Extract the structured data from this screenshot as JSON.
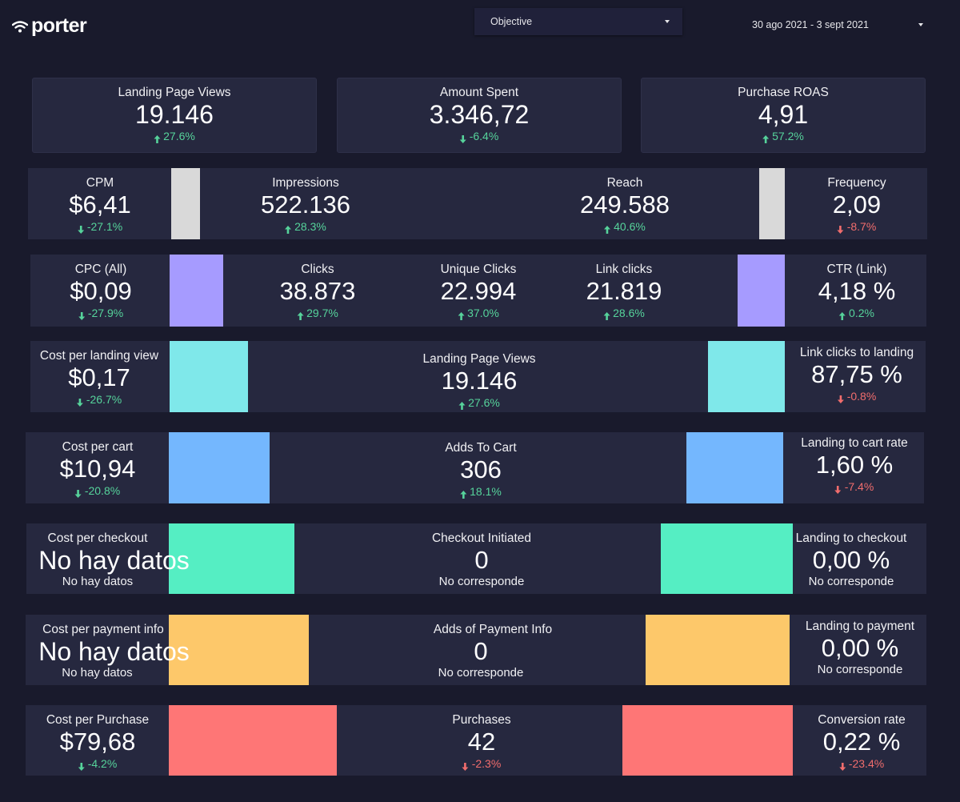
{
  "header": {
    "logo_text": "porter",
    "objective_label": "Objective",
    "date_range": "30 ago 2021 - 3 sept 2021"
  },
  "colors": {
    "background": "#191a2c",
    "card": "#26283f",
    "positive": "#56d39b",
    "negative": "#f16d6d",
    "bar_gray": "#d9d9d9",
    "bar_purple": "#a69bff",
    "bar_cyan": "#7fe8ea",
    "bar_blue": "#74b7fe",
    "bar_green": "#55eec3",
    "bar_yellow": "#fdc86a",
    "bar_red": "#fe7676"
  },
  "top": [
    {
      "label": "Landing Page Views",
      "value": "19.146",
      "delta": "27.6%",
      "dir": "up",
      "tone": "good"
    },
    {
      "label": "Amount Spent",
      "value": "3.346,72",
      "delta": "-6.4%",
      "dir": "down",
      "tone": "good"
    },
    {
      "label": "Purchase ROAS",
      "value": "4,91",
      "delta": "57.2%",
      "dir": "up",
      "tone": "good"
    }
  ],
  "rows": {
    "cpm": {
      "label": "CPM",
      "value": "$6,41",
      "delta": "-27.1%",
      "dir": "down",
      "tone": "good"
    },
    "impressions": {
      "label": "Impressions",
      "value": "522.136",
      "delta": "28.3%",
      "dir": "up",
      "tone": "good"
    },
    "reach": {
      "label": "Reach",
      "value": "249.588",
      "delta": "40.6%",
      "dir": "up",
      "tone": "good"
    },
    "frequency": {
      "label": "Frequency",
      "value": "2,09",
      "delta": "-8.7%",
      "dir": "down",
      "tone": "bad"
    },
    "cpc": {
      "label": "CPC (All)",
      "value": "$0,09",
      "delta": "-27.9%",
      "dir": "down",
      "tone": "good"
    },
    "clicks": {
      "label": "Clicks",
      "value": "38.873",
      "delta": "29.7%",
      "dir": "up",
      "tone": "good"
    },
    "unique_clicks": {
      "label": "Unique Clicks",
      "value": "22.994",
      "delta": "37.0%",
      "dir": "up",
      "tone": "good"
    },
    "link_clicks": {
      "label": "Link clicks",
      "value": "21.819",
      "delta": "28.6%",
      "dir": "up",
      "tone": "good"
    },
    "ctr": {
      "label": "CTR (Link)",
      "value": "4,18 %",
      "delta": "0.2%",
      "dir": "up",
      "tone": "good"
    },
    "cost_landing": {
      "label": "Cost per landing view",
      "value": "$0,17",
      "delta": "-26.7%",
      "dir": "down",
      "tone": "good"
    },
    "landing_views": {
      "label": "Landing Page Views",
      "value": "19.146",
      "delta": "27.6%",
      "dir": "up",
      "tone": "good"
    },
    "link_to_landing": {
      "label": "Link clicks to landing",
      "value": "87,75 %",
      "delta": "-0.8%",
      "dir": "down",
      "tone": "bad"
    },
    "cost_cart": {
      "label": "Cost per cart",
      "value": "$10,94",
      "delta": "-20.8%",
      "dir": "down",
      "tone": "good"
    },
    "adds_cart": {
      "label": "Adds To Cart",
      "value": "306",
      "delta": "18.1%",
      "dir": "up",
      "tone": "good"
    },
    "landing_cart": {
      "label": "Landing to cart rate",
      "value": "1,60 %",
      "delta": "-7.4%",
      "dir": "down",
      "tone": "bad"
    },
    "cost_checkout": {
      "label": "Cost per checkout",
      "value": "No hay datos",
      "delta": "No hay datos"
    },
    "checkout": {
      "label": "Checkout Initiated",
      "value": "0",
      "delta": "No corresponde"
    },
    "landing_checkout": {
      "label": "Landing to checkout",
      "value": "0,00 %",
      "delta": "No corresponde"
    },
    "cost_payment": {
      "label": "Cost per payment info",
      "value": "No hay datos",
      "delta": "No hay datos"
    },
    "payment": {
      "label": "Adds of Payment Info",
      "value": "0",
      "delta": "No corresponde"
    },
    "landing_payment": {
      "label": "Landing to payment",
      "value": "0,00 %",
      "delta": "No corresponde"
    },
    "cost_purchase": {
      "label": "Cost per Purchase",
      "value": "$79,68",
      "delta": "-4.2%",
      "dir": "down",
      "tone": "good"
    },
    "purchases": {
      "label": "Purchases",
      "value": "42",
      "delta": "-2.3%",
      "dir": "down",
      "tone": "bad"
    },
    "conversion": {
      "label": "Conversion rate",
      "value": "0,22 %",
      "delta": "-23.4%",
      "dir": "down",
      "tone": "bad"
    }
  }
}
